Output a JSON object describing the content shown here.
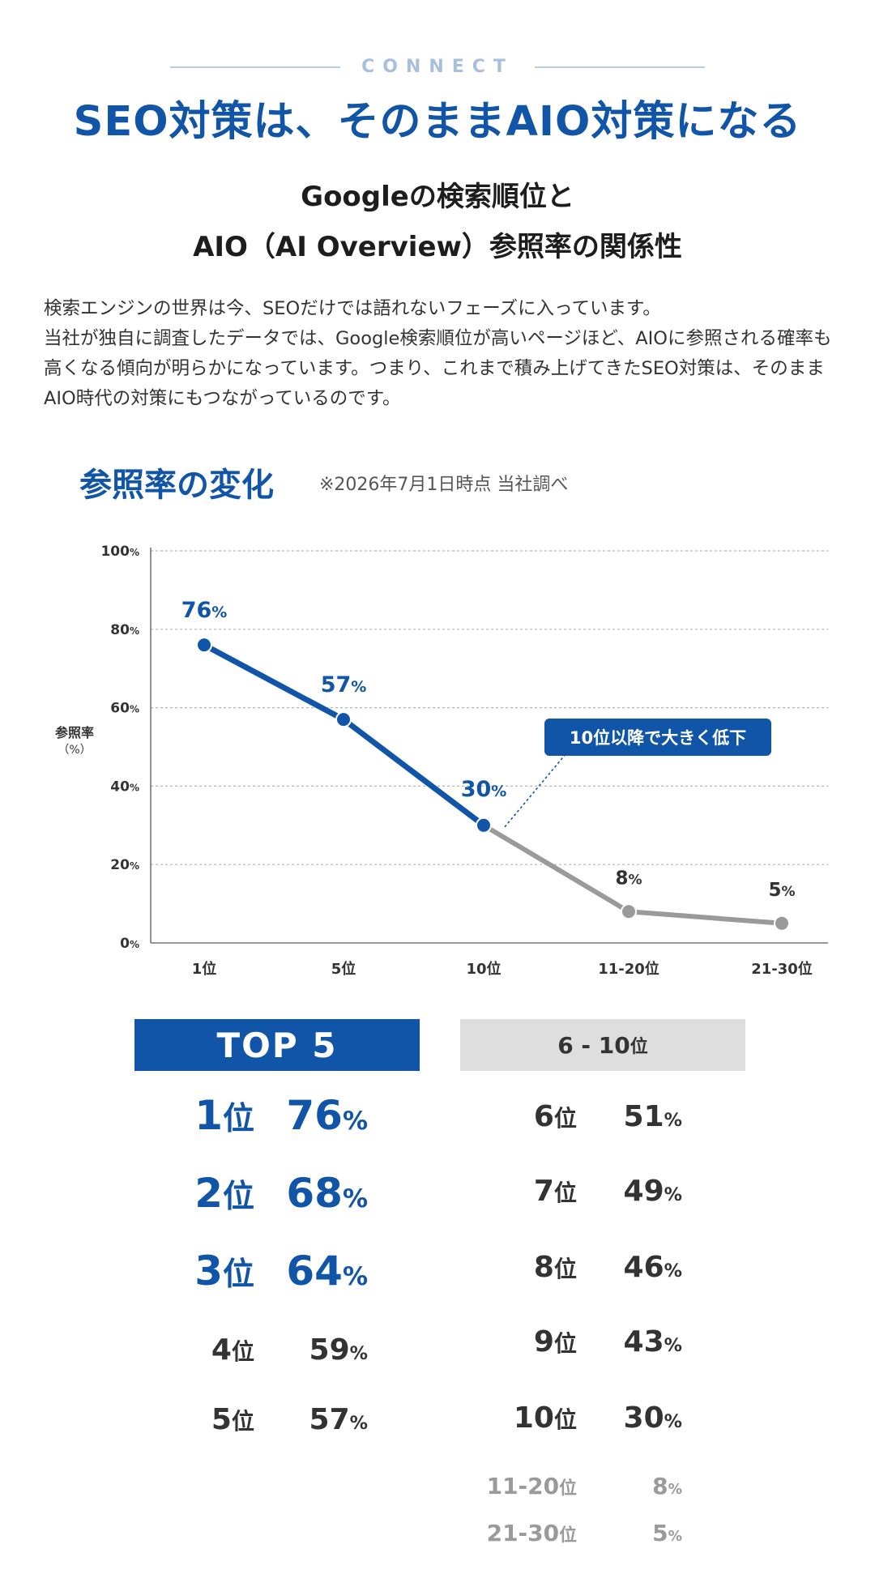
{
  "header": {
    "eyebrow": "CONNECT",
    "headline": "SEO対策は、そのままAIO対策になる",
    "subtitle_line1": "Googleの検索順位と",
    "subtitle_line2": "AIO（AI Overview）参照率の関係性"
  },
  "intro": {
    "text": "検索エンジンの世界は今、SEOだけでは語れないフェーズに入っています。\n当社が独自に調査したデータでは、Google検索順位が高いページほど、AIOに参照される確率も高くなる傾向が明らかになっています。つまり、これまで積み上げてきたSEO対策は、そのままAIO時代の対策にもつながっているのです。"
  },
  "section": {
    "title": "参照率の変化",
    "note": "※2026年7月1日時点 当社調べ"
  },
  "chart_data": {
    "type": "line",
    "categories": [
      "1位",
      "5位",
      "10位",
      "11-20位",
      "21-30位"
    ],
    "values": [
      76,
      57,
      30,
      8,
      5
    ],
    "value_labels": [
      "76",
      "57",
      "30",
      "8",
      "5"
    ],
    "value_unit": "%",
    "ylabel_line1": "参照率",
    "ylabel_line2": "（%）",
    "ylim": [
      0,
      100
    ],
    "yticks": [
      "100",
      "80",
      "60",
      "40",
      "20",
      "0"
    ],
    "ytick_unit": "%",
    "grid": true,
    "highlight_until_index": 2,
    "colors": {
      "highlight": "#1155a8",
      "muted": "#9a9a9a",
      "axis": "#777777",
      "grid": "#b5b5b5"
    },
    "annotation": "10位以降で大きく低下"
  },
  "top5": {
    "title": "TOP 5",
    "rows": [
      {
        "rank": "1",
        "value": "76",
        "emphasis": true
      },
      {
        "rank": "2",
        "value": "68",
        "emphasis": true
      },
      {
        "rank": "3",
        "value": "64",
        "emphasis": true
      },
      {
        "rank": "4",
        "value": "59",
        "emphasis": false
      },
      {
        "rank": "5",
        "value": "57",
        "emphasis": false
      }
    ]
  },
  "mid": {
    "title_range": "6 - 10",
    "rows": [
      {
        "rank": "6",
        "value": "51",
        "muted": false
      },
      {
        "rank": "7",
        "value": "49",
        "muted": false
      },
      {
        "rank": "8",
        "value": "46",
        "muted": false
      },
      {
        "rank": "9",
        "value": "43",
        "muted": false
      },
      {
        "rank": "10",
        "value": "30",
        "muted": false
      },
      {
        "rank": "11-20",
        "value": "8",
        "muted": true
      },
      {
        "rank": "21-30",
        "value": "5",
        "muted": true
      }
    ]
  },
  "units": {
    "rank": "位",
    "percent": "%"
  },
  "colors": {
    "brand": "#1155a8",
    "dark": "#333333",
    "muted": "#9a9a9a"
  }
}
